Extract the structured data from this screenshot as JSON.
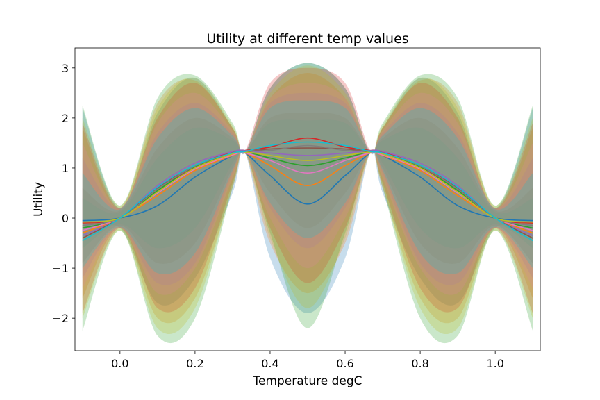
{
  "chart_data": {
    "type": "line",
    "title": "Utility at different temp values",
    "xlabel": "Temperature degC",
    "ylabel": "Utility",
    "xlim": [
      -0.12,
      1.12
    ],
    "ylim": [
      -2.65,
      3.4
    ],
    "x_ticks": [
      0.0,
      0.2,
      0.4,
      0.6,
      0.8,
      1.0
    ],
    "x_tick_labels": [
      "0.0",
      "0.2",
      "0.4",
      "0.6",
      "0.8",
      "1.0"
    ],
    "y_ticks": [
      -2,
      -1,
      0,
      1,
      2,
      3
    ],
    "y_tick_labels": [
      "−2",
      "−1",
      "0",
      "1",
      "2",
      "3"
    ],
    "x_range": [
      -0.1,
      1.1
    ],
    "grid": false,
    "shaded_bands": true,
    "series_colors": [
      "#1f77b4",
      "#ff7f0e",
      "#2ca02c",
      "#d62728",
      "#9467bd",
      "#8c564b",
      "#e377c2",
      "#7f7f7f",
      "#bcbd22",
      "#17becf"
    ],
    "series": [
      {
        "values": [
          {
            "x": -0.1,
            "y": -0.05
          },
          {
            "x": 0.0,
            "y": 0.0
          },
          {
            "x": 0.1,
            "y": 0.25
          },
          {
            "x": 0.2,
            "y": 0.82
          },
          {
            "x": 0.3,
            "y": 1.25
          },
          {
            "x": 0.333,
            "y": 1.3
          },
          {
            "x": 0.4,
            "y": 0.85
          },
          {
            "x": 0.5,
            "y": 0.28
          },
          {
            "x": 0.6,
            "y": 0.85
          },
          {
            "x": 0.667,
            "y": 1.3
          },
          {
            "x": 0.7,
            "y": 1.25
          },
          {
            "x": 0.8,
            "y": 0.82
          },
          {
            "x": 0.9,
            "y": 0.25
          },
          {
            "x": 1.0,
            "y": 0.0
          },
          {
            "x": 1.1,
            "y": -0.05
          }
        ],
        "band_low": [
          -0.42,
          -0.2,
          -1.7,
          -1.2,
          0.5,
          1.3,
          -0.8,
          -1.9,
          -0.8,
          1.3,
          0.5,
          -1.2,
          -1.7,
          -0.2,
          -0.42
        ],
        "band_high": [
          2.2,
          0.2,
          2.1,
          2.8,
          1.8,
          1.3,
          2.6,
          3.1,
          2.6,
          1.3,
          1.8,
          2.8,
          2.1,
          0.2,
          2.2
        ]
      },
      {
        "values": [
          {
            "x": -0.1,
            "y": -0.3
          },
          {
            "x": 0.0,
            "y": 0.0
          },
          {
            "x": 0.1,
            "y": 0.45
          },
          {
            "x": 0.2,
            "y": 0.95
          },
          {
            "x": 0.3,
            "y": 1.25
          },
          {
            "x": 0.333,
            "y": 1.3
          },
          {
            "x": 0.4,
            "y": 1.05
          },
          {
            "x": 0.5,
            "y": 0.65
          },
          {
            "x": 0.6,
            "y": 1.05
          },
          {
            "x": 0.667,
            "y": 1.3
          },
          {
            "x": 0.7,
            "y": 1.25
          },
          {
            "x": 0.8,
            "y": 0.95
          },
          {
            "x": 0.9,
            "y": 0.45
          },
          {
            "x": 1.0,
            "y": 0.0
          },
          {
            "x": 1.1,
            "y": -0.3
          }
        ],
        "band_low": [
          -1.6,
          -0.2,
          -2.0,
          -1.6,
          0.6,
          1.3,
          -0.5,
          -1.5,
          -0.5,
          1.3,
          0.6,
          -1.6,
          -2.0,
          -0.2,
          -1.6
        ],
        "band_high": [
          1.8,
          0.2,
          2.3,
          2.75,
          1.8,
          1.3,
          2.4,
          2.9,
          2.4,
          1.3,
          1.8,
          2.75,
          2.3,
          0.2,
          1.8
        ]
      },
      {
        "values": [
          {
            "x": -0.1,
            "y": -0.2
          },
          {
            "x": 0.0,
            "y": 0.0
          },
          {
            "x": 0.1,
            "y": 0.55
          },
          {
            "x": 0.2,
            "y": 1.02
          },
          {
            "x": 0.3,
            "y": 1.3
          },
          {
            "x": 0.333,
            "y": 1.33
          },
          {
            "x": 0.4,
            "y": 1.2
          },
          {
            "x": 0.5,
            "y": 1.05
          },
          {
            "x": 0.6,
            "y": 1.2
          },
          {
            "x": 0.667,
            "y": 1.33
          },
          {
            "x": 0.7,
            "y": 1.3
          },
          {
            "x": 0.8,
            "y": 1.02
          },
          {
            "x": 0.9,
            "y": 0.55
          },
          {
            "x": 1.0,
            "y": 0.0
          },
          {
            "x": 1.1,
            "y": -0.2
          }
        ],
        "band_low": [
          -2.25,
          -0.25,
          -2.35,
          -2.0,
          0.6,
          1.3,
          -0.3,
          -2.2,
          -0.3,
          1.3,
          0.6,
          -2.0,
          -2.35,
          -0.25,
          -2.25
        ],
        "band_high": [
          2.25,
          0.25,
          2.4,
          2.85,
          1.9,
          1.3,
          2.6,
          3.1,
          2.6,
          1.3,
          1.9,
          2.85,
          2.4,
          0.25,
          2.25
        ]
      },
      {
        "values": [
          {
            "x": -0.1,
            "y": -0.1
          },
          {
            "x": 0.0,
            "y": 0.0
          },
          {
            "x": 0.1,
            "y": 0.6
          },
          {
            "x": 0.2,
            "y": 1.05
          },
          {
            "x": 0.3,
            "y": 1.32
          },
          {
            "x": 0.333,
            "y": 1.35
          },
          {
            "x": 0.4,
            "y": 1.42
          },
          {
            "x": 0.5,
            "y": 1.6
          },
          {
            "x": 0.6,
            "y": 1.42
          },
          {
            "x": 0.667,
            "y": 1.35
          },
          {
            "x": 0.7,
            "y": 1.32
          },
          {
            "x": 0.8,
            "y": 1.05
          },
          {
            "x": 0.9,
            "y": 0.6
          },
          {
            "x": 1.0,
            "y": 0.0
          },
          {
            "x": 1.1,
            "y": -0.1
          }
        ],
        "band_low": [
          -1.9,
          -0.2,
          -1.8,
          -1.4,
          0.7,
          1.35,
          -0.2,
          -1.3,
          -0.2,
          1.35,
          0.7,
          -1.4,
          -1.8,
          -0.2,
          -1.9
        ],
        "band_high": [
          1.9,
          0.2,
          2.0,
          2.7,
          1.8,
          1.35,
          2.7,
          3.0,
          2.7,
          1.35,
          1.8,
          2.7,
          2.0,
          0.2,
          1.9
        ]
      },
      {
        "values": [
          {
            "x": -0.1,
            "y": -0.35
          },
          {
            "x": 0.0,
            "y": 0.0
          },
          {
            "x": 0.1,
            "y": 0.65
          },
          {
            "x": 0.2,
            "y": 1.1
          },
          {
            "x": 0.3,
            "y": 1.33
          },
          {
            "x": 0.333,
            "y": 1.35
          },
          {
            "x": 0.4,
            "y": 1.3
          },
          {
            "x": 0.5,
            "y": 1.25
          },
          {
            "x": 0.6,
            "y": 1.3
          },
          {
            "x": 0.667,
            "y": 1.35
          },
          {
            "x": 0.7,
            "y": 1.33
          },
          {
            "x": 0.8,
            "y": 1.1
          },
          {
            "x": 0.9,
            "y": 0.65
          },
          {
            "x": 1.0,
            "y": 0.0
          },
          {
            "x": 1.1,
            "y": -0.35
          }
        ],
        "band_low": [
          -1.2,
          -0.2,
          -1.3,
          -0.9,
          0.9,
          1.35,
          0.2,
          -0.6,
          0.2,
          1.35,
          0.9,
          -0.9,
          -1.3,
          -0.2,
          -1.2
        ],
        "band_high": [
          1.2,
          0.2,
          1.7,
          2.3,
          1.7,
          1.35,
          2.3,
          2.5,
          2.3,
          1.35,
          1.7,
          2.3,
          1.7,
          0.2,
          1.2
        ]
      },
      {
        "values": [
          {
            "x": -0.1,
            "y": -0.4
          },
          {
            "x": 0.0,
            "y": 0.0
          },
          {
            "x": 0.1,
            "y": 0.6
          },
          {
            "x": 0.2,
            "y": 1.0
          },
          {
            "x": 0.3,
            "y": 1.28
          },
          {
            "x": 0.333,
            "y": 1.32
          },
          {
            "x": 0.4,
            "y": 1.38
          },
          {
            "x": 0.5,
            "y": 1.4
          },
          {
            "x": 0.6,
            "y": 1.38
          },
          {
            "x": 0.667,
            "y": 1.32
          },
          {
            "x": 0.7,
            "y": 1.28
          },
          {
            "x": 0.8,
            "y": 1.0
          },
          {
            "x": 0.9,
            "y": 0.6
          },
          {
            "x": 1.0,
            "y": 0.0
          },
          {
            "x": 1.1,
            "y": -0.4
          }
        ],
        "band_low": [
          -0.9,
          -0.15,
          -0.9,
          -0.5,
          1.0,
          1.32,
          0.5,
          -0.2,
          0.5,
          1.32,
          1.0,
          -0.5,
          -0.9,
          -0.15,
          -0.9
        ],
        "band_high": [
          0.6,
          0.15,
          1.4,
          2.0,
          1.6,
          1.32,
          2.0,
          2.1,
          2.0,
          1.32,
          1.6,
          2.0,
          1.4,
          0.15,
          0.6
        ]
      },
      {
        "values": [
          {
            "x": -0.1,
            "y": -0.25
          },
          {
            "x": 0.0,
            "y": 0.0
          },
          {
            "x": 0.1,
            "y": 0.5
          },
          {
            "x": 0.2,
            "y": 0.98
          },
          {
            "x": 0.3,
            "y": 1.26
          },
          {
            "x": 0.333,
            "y": 1.3
          },
          {
            "x": 0.4,
            "y": 1.15
          },
          {
            "x": 0.5,
            "y": 0.9
          },
          {
            "x": 0.6,
            "y": 1.15
          },
          {
            "x": 0.667,
            "y": 1.3
          },
          {
            "x": 0.7,
            "y": 1.26
          },
          {
            "x": 0.8,
            "y": 0.98
          },
          {
            "x": 0.9,
            "y": 0.5
          },
          {
            "x": 1.0,
            "y": 0.0
          },
          {
            "x": 1.1,
            "y": -0.25
          }
        ],
        "band_low": [
          -1.4,
          -0.2,
          -1.5,
          -1.0,
          0.8,
          1.3,
          0.0,
          -1.0,
          0.0,
          1.3,
          0.8,
          -1.0,
          -1.5,
          -0.2,
          -1.4
        ],
        "band_high": [
          1.5,
          0.2,
          1.9,
          2.5,
          1.75,
          1.3,
          2.4,
          2.7,
          2.4,
          1.3,
          1.75,
          2.5,
          1.9,
          0.2,
          1.5
        ]
      },
      {
        "values": [
          {
            "x": -0.1,
            "y": -0.15
          },
          {
            "x": 0.0,
            "y": 0.0
          },
          {
            "x": 0.1,
            "y": 0.58
          },
          {
            "x": 0.2,
            "y": 1.04
          },
          {
            "x": 0.3,
            "y": 1.3
          },
          {
            "x": 0.333,
            "y": 1.34
          },
          {
            "x": 0.4,
            "y": 1.35
          },
          {
            "x": 0.5,
            "y": 1.45
          },
          {
            "x": 0.6,
            "y": 1.35
          },
          {
            "x": 0.667,
            "y": 1.34
          },
          {
            "x": 0.7,
            "y": 1.3
          },
          {
            "x": 0.8,
            "y": 1.04
          },
          {
            "x": 0.9,
            "y": 0.58
          },
          {
            "x": 1.0,
            "y": 0.0
          },
          {
            "x": 1.1,
            "y": -0.15
          }
        ],
        "band_low": [
          -0.6,
          -0.12,
          -0.6,
          -0.2,
          1.1,
          1.34,
          0.8,
          0.3,
          0.8,
          1.34,
          1.1,
          -0.2,
          -0.6,
          -0.12,
          -0.6
        ],
        "band_high": [
          0.4,
          0.12,
          1.2,
          1.8,
          1.55,
          1.34,
          1.9,
          1.95,
          1.9,
          1.34,
          1.55,
          1.8,
          1.2,
          0.12,
          0.4
        ]
      },
      {
        "values": [
          {
            "x": -0.1,
            "y": -0.08
          },
          {
            "x": 0.0,
            "y": 0.0
          },
          {
            "x": 0.1,
            "y": 0.52
          },
          {
            "x": 0.2,
            "y": 1.0
          },
          {
            "x": 0.3,
            "y": 1.28
          },
          {
            "x": 0.333,
            "y": 1.32
          },
          {
            "x": 0.4,
            "y": 1.25
          },
          {
            "x": 0.5,
            "y": 1.15
          },
          {
            "x": 0.6,
            "y": 1.25
          },
          {
            "x": 0.667,
            "y": 1.32
          },
          {
            "x": 0.7,
            "y": 1.28
          },
          {
            "x": 0.8,
            "y": 1.0
          },
          {
            "x": 0.9,
            "y": 0.52
          },
          {
            "x": 1.0,
            "y": 0.0
          },
          {
            "x": 1.1,
            "y": -0.08
          }
        ],
        "band_low": [
          -2.0,
          -0.25,
          -2.2,
          -1.8,
          0.65,
          1.32,
          -0.4,
          -1.8,
          -0.4,
          1.32,
          0.65,
          -1.8,
          -2.2,
          -0.25,
          -2.0
        ],
        "band_high": [
          2.0,
          0.25,
          2.2,
          2.8,
          1.85,
          1.32,
          2.5,
          3.05,
          2.5,
          1.32,
          1.85,
          2.8,
          2.2,
          0.25,
          2.0
        ]
      },
      {
        "values": [
          {
            "x": -0.1,
            "y": -0.45
          },
          {
            "x": 0.0,
            "y": 0.0
          },
          {
            "x": 0.1,
            "y": 0.62
          },
          {
            "x": 0.2,
            "y": 1.06
          },
          {
            "x": 0.3,
            "y": 1.3
          },
          {
            "x": 0.333,
            "y": 1.33
          },
          {
            "x": 0.4,
            "y": 1.45
          },
          {
            "x": 0.5,
            "y": 1.52
          },
          {
            "x": 0.6,
            "y": 1.45
          },
          {
            "x": 0.667,
            "y": 1.33
          },
          {
            "x": 0.7,
            "y": 1.3
          },
          {
            "x": 0.8,
            "y": 1.06
          },
          {
            "x": 0.9,
            "y": 0.62
          },
          {
            "x": 1.0,
            "y": 0.0
          },
          {
            "x": 1.1,
            "y": -0.45
          }
        ],
        "band_low": [
          -1.0,
          -0.18,
          -1.1,
          -0.7,
          0.95,
          1.33,
          0.3,
          -0.4,
          0.3,
          1.33,
          0.95,
          -0.7,
          -1.1,
          -0.18,
          -1.0
        ],
        "band_high": [
          0.9,
          0.18,
          1.6,
          2.2,
          1.65,
          1.33,
          2.2,
          2.35,
          2.2,
          1.33,
          1.65,
          2.2,
          1.6,
          0.18,
          0.9
        ]
      }
    ]
  }
}
